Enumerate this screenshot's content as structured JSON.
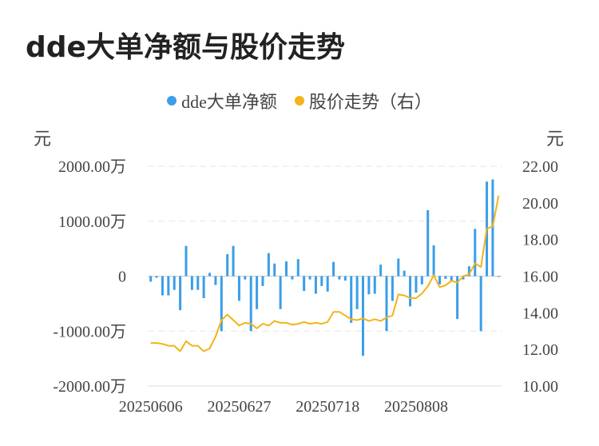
{
  "chart_data": {
    "type": "bar+line",
    "title": "dde大单净额与股价走势",
    "legend": [
      {
        "name": "dde大单净额",
        "color": "#3a9ee8"
      },
      {
        "name": "股价走势（右）",
        "color": "#f2b418"
      }
    ],
    "y_left_unit": "元",
    "y_right_unit": "元",
    "y_left_ticks": [
      "2000.00万",
      "1000.00万",
      "0",
      "-1000.00万",
      "-2000.00万"
    ],
    "y_right_ticks": [
      "22.00",
      "20.00",
      "18.00",
      "16.00",
      "14.00",
      "12.00",
      "10.00"
    ],
    "ylim_left": [
      -2000,
      2000
    ],
    "ylim_right": [
      10,
      22
    ],
    "x_tick_labels": [
      "20250606",
      "20250627",
      "20250718",
      "20250808"
    ],
    "x_tick_index": [
      0,
      15,
      30,
      45
    ],
    "series": [
      {
        "name": "dde大单净额",
        "type": "bar",
        "unit": "万",
        "values": [
          -100,
          -30,
          -350,
          -350,
          -250,
          -620,
          550,
          -250,
          -250,
          -400,
          60,
          -160,
          -1000,
          400,
          550,
          -450,
          -60,
          -1000,
          -600,
          -180,
          420,
          230,
          -600,
          270,
          -60,
          310,
          -270,
          -60,
          -320,
          -180,
          -280,
          260,
          -60,
          -80,
          -850,
          -600,
          -1450,
          -330,
          -320,
          210,
          -1000,
          -450,
          320,
          100,
          -550,
          -300,
          -150,
          1200,
          560,
          -150,
          -50,
          -80,
          -780,
          -60,
          180,
          860,
          -1000,
          1720,
          1760,
          0
        ],
        "color": "#3a9ee8"
      },
      {
        "name": "股价走势",
        "type": "line",
        "values": [
          12.35,
          12.35,
          12.3,
          12.2,
          12.2,
          11.9,
          12.45,
          12.2,
          12.2,
          11.9,
          12.05,
          12.7,
          13.6,
          13.9,
          13.6,
          13.3,
          13.45,
          13.4,
          13.15,
          13.4,
          13.3,
          13.55,
          13.45,
          13.45,
          13.35,
          13.4,
          13.5,
          13.4,
          13.45,
          13.4,
          13.5,
          14.05,
          14.05,
          13.85,
          13.65,
          13.6,
          13.7,
          13.55,
          13.65,
          13.55,
          13.75,
          13.85,
          15.0,
          14.95,
          14.8,
          14.8,
          15.05,
          15.45,
          16.05,
          15.4,
          15.5,
          15.75,
          15.65,
          16.0,
          16.1,
          16.7,
          16.5,
          18.6,
          18.7,
          20.4
        ],
        "color": "#f2b418"
      }
    ]
  }
}
